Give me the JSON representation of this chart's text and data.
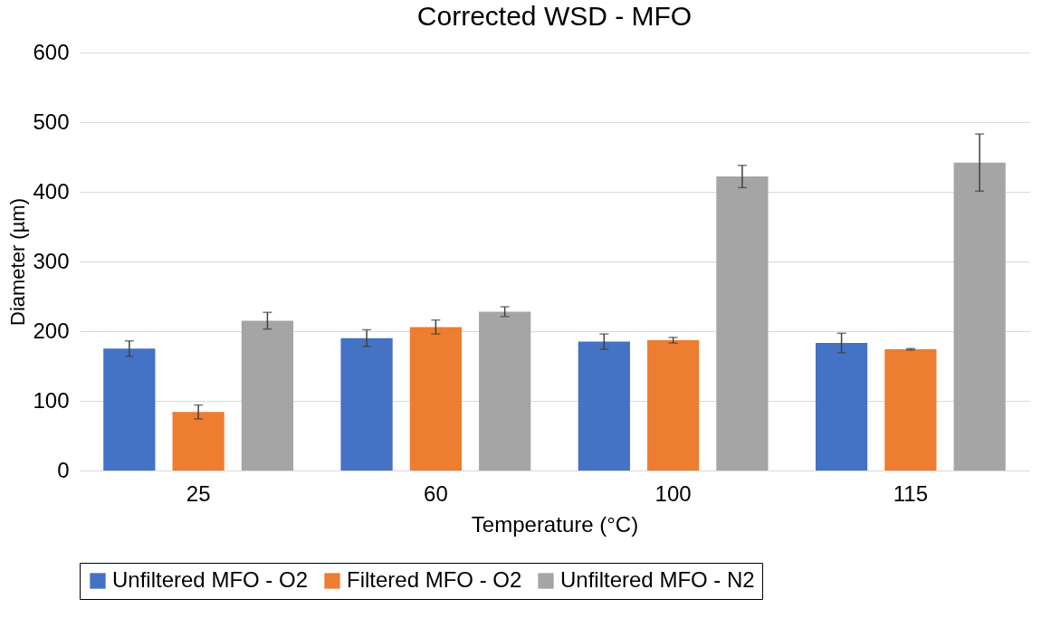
{
  "chart_data": {
    "type": "bar",
    "title": "Corrected WSD - MFO",
    "xlabel": "Temperature (°C)",
    "ylabel": "Diameter (µm)",
    "categories": [
      "25",
      "60",
      "100",
      "115"
    ],
    "series": [
      {
        "name": "Unfiltered MFO - O2",
        "color": "#4472c4",
        "values": [
          175,
          190,
          185,
          183
        ],
        "errors": [
          11,
          12,
          11,
          14
        ]
      },
      {
        "name": "Filtered MFO - O2",
        "color": "#ed7d31",
        "values": [
          84,
          206,
          187,
          174
        ],
        "errors": [
          10,
          10,
          4,
          1
        ]
      },
      {
        "name": "Unfiltered MFO - N2",
        "color": "#a5a5a5",
        "values": [
          215,
          228,
          422,
          442
        ],
        "errors": [
          12,
          7,
          16,
          41
        ]
      }
    ],
    "ylim": [
      0,
      600
    ],
    "yticks": [
      0,
      100,
      200,
      300,
      400,
      500,
      600
    ],
    "grid": "y",
    "legend": "bottom"
  }
}
